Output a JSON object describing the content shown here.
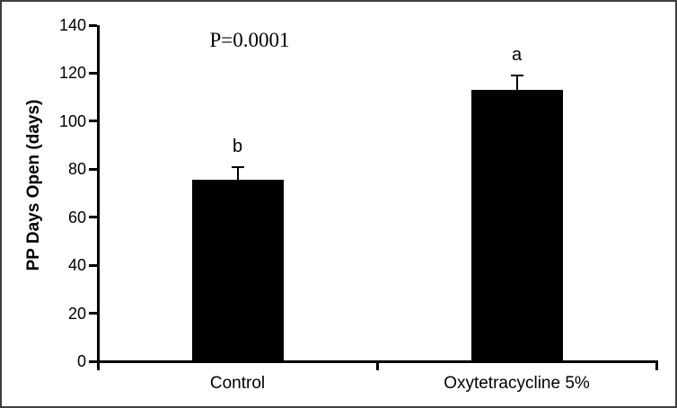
{
  "figure": {
    "background_color": "#ffffff",
    "border_color": "#3f3f3f",
    "axis_color": "#000000",
    "bar_color": "#000000",
    "text_color": "#000000"
  },
  "chart_data": {
    "type": "bar",
    "title": "",
    "xlabel": "",
    "ylabel": "PP Days Open (days)",
    "annotation": "P=0.0001",
    "categories": [
      "Control",
      "Oxytetracycline 5%"
    ],
    "values": [
      75.5,
      113
    ],
    "error_bars": [
      5.5,
      6
    ],
    "significance_letters": [
      "b",
      "a"
    ],
    "ylim": [
      0,
      140
    ],
    "yticks": [
      0,
      20,
      40,
      60,
      80,
      100,
      120,
      140
    ],
    "grid": false,
    "legend": false,
    "error_bar_direction": "upper-only"
  }
}
